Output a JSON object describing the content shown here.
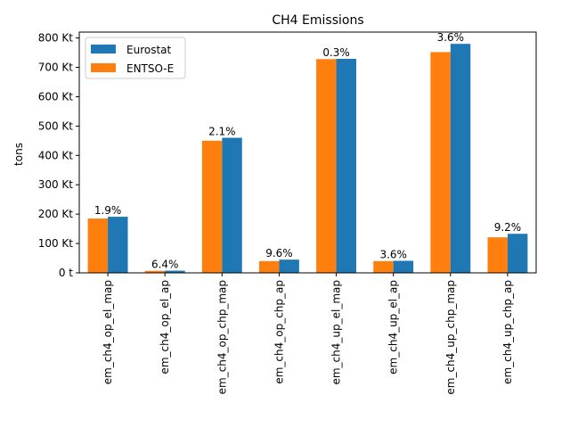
{
  "chart_data": {
    "type": "bar",
    "title": "CH4 Emissions",
    "xlabel": "",
    "ylabel": "tons",
    "categories": [
      "em_ch4_op_el_map",
      "em_ch4_op_el_ap",
      "em_ch4_op_chp_map",
      "em_ch4_op_chp_ap",
      "em_ch4_up_el_map",
      "em_ch4_up_el_ap",
      "em_ch4_up_chp_map",
      "em_ch4_up_chp_ap"
    ],
    "series": [
      {
        "name": "ENTSO-E",
        "color": "#ff7f0e",
        "values": [
          185000,
          7000,
          450000,
          40000,
          728000,
          40000,
          752000,
          121000
        ]
      },
      {
        "name": "Eurostat",
        "color": "#1f77b4",
        "values": [
          191000,
          7500,
          460000,
          45000,
          729000,
          41000,
          780000,
          133000
        ]
      }
    ],
    "annotations": [
      "1.9%",
      "6.4%",
      "2.1%",
      "9.6%",
      "0.3%",
      "3.6%",
      "3.6%",
      "9.2%"
    ],
    "yticks": [
      0,
      100000,
      200000,
      300000,
      400000,
      500000,
      600000,
      700000,
      800000
    ],
    "ytick_labels": [
      "0 t",
      "100 Kt",
      "200 Kt",
      "300 Kt",
      "400 Kt",
      "500 Kt",
      "600 Kt",
      "700 Kt",
      "800 Kt"
    ],
    "ylim": [
      0,
      820000
    ],
    "grid": false,
    "legend_position": "top-left",
    "legend_order": [
      "Eurostat",
      "ENTSO-E"
    ]
  }
}
